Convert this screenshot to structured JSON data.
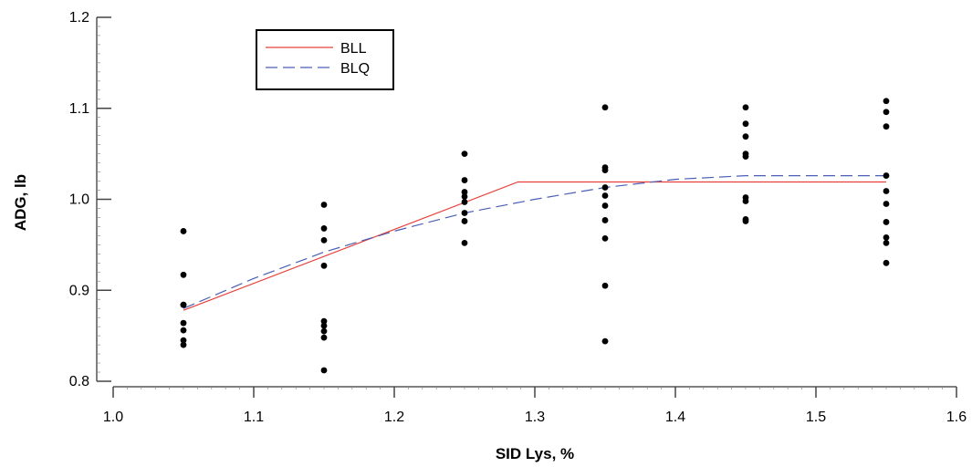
{
  "chart_data": {
    "type": "scatter",
    "title": "",
    "xlabel": "SID Lys, %",
    "ylabel": "ADG, lb",
    "xlim": [
      1.0,
      1.6
    ],
    "ylim": [
      0.8,
      1.2
    ],
    "x_ticks": [
      "1.0",
      "1.1",
      "1.2",
      "1.3",
      "1.4",
      "1.5",
      "1.6"
    ],
    "y_ticks": [
      "0.8",
      "0.9",
      "1.0",
      "1.1",
      "1.2"
    ],
    "grid": false,
    "legend_position": "top-left",
    "points": [
      {
        "x": 1.05,
        "values": [
          0.965,
          0.917,
          0.884,
          0.884,
          0.864,
          0.856,
          0.845,
          0.84
        ]
      },
      {
        "x": 1.15,
        "values": [
          0.994,
          0.968,
          0.955,
          0.927,
          0.866,
          0.861,
          0.855,
          0.848,
          0.812
        ]
      },
      {
        "x": 1.25,
        "values": [
          1.05,
          1.021,
          1.008,
          1.003,
          0.997,
          0.985,
          0.976,
          0.952
        ]
      },
      {
        "x": 1.35,
        "values": [
          1.101,
          1.035,
          1.032,
          1.013,
          1.004,
          0.993,
          0.977,
          0.957,
          0.905,
          0.844
        ]
      },
      {
        "x": 1.45,
        "values": [
          1.101,
          1.083,
          1.069,
          1.05,
          1.047,
          1.002,
          0.998,
          0.978,
          0.976
        ]
      },
      {
        "x": 1.55,
        "values": [
          1.108,
          1.096,
          1.08,
          1.026,
          1.009,
          0.995,
          0.975,
          0.958,
          0.952,
          0.93
        ]
      }
    ],
    "series": [
      {
        "name": "BLL",
        "color": "#e8413b",
        "dash": "solid",
        "x": [
          1.05,
          1.288,
          1.55
        ],
        "y": [
          0.878,
          1.019,
          1.019
        ]
      },
      {
        "name": "BLQ",
        "color": "#4a5fb5",
        "dash": "dashed",
        "x": [
          1.05,
          1.1,
          1.15,
          1.2,
          1.25,
          1.3,
          1.35,
          1.4,
          1.45,
          1.5,
          1.55
        ],
        "y": [
          0.88,
          0.913,
          0.942,
          0.965,
          0.985,
          1.0,
          1.013,
          1.022,
          1.026,
          1.026,
          1.026
        ]
      }
    ]
  }
}
